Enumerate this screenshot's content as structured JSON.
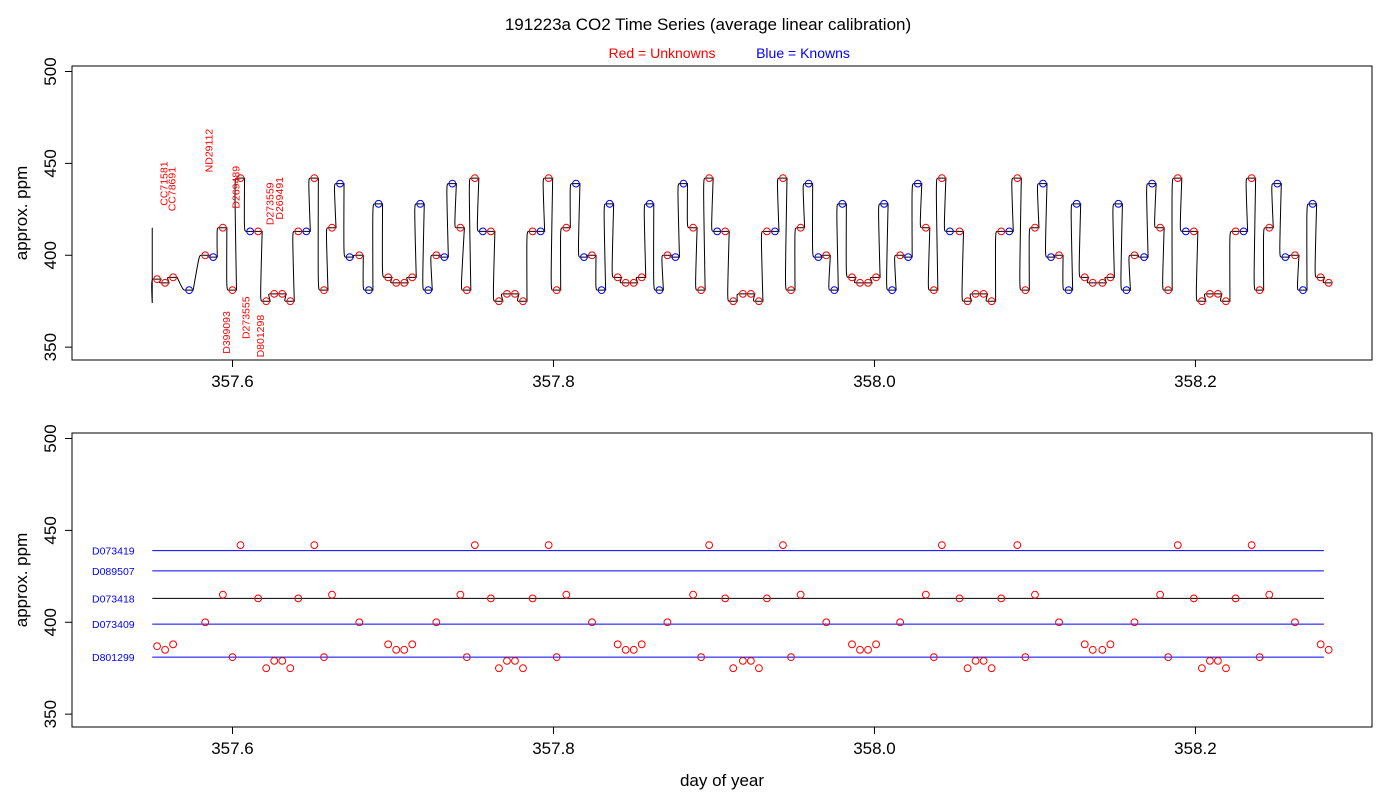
{
  "header": {
    "title": "191223a   CO2 Time Series (average linear calibration)",
    "legend_red": "Red = Unknowns",
    "legend_blue": "Blue = Knowns"
  },
  "colors": {
    "unknown": "#ff0000",
    "known": "#0000ff",
    "line": "#000000",
    "axis": "#000000"
  },
  "chart_data": [
    {
      "type": "line",
      "panel": "top",
      "title": "",
      "xlabel": "",
      "ylabel": "approx. ppm",
      "xlim": [
        357.5,
        358.31
      ],
      "ylim": [
        343,
        503
      ],
      "xticks": [
        357.6,
        357.8,
        358.0,
        358.2
      ],
      "xtick_labels": [
        "357.6",
        "357.8",
        "358.0",
        "358.2"
      ],
      "yticks": [
        350,
        400,
        450,
        500
      ],
      "ytick_labels": [
        "350",
        "400",
        "450",
        "500"
      ],
      "series_start_x": 357.55,
      "series_start_y": 415,
      "step_half_width": 0.0025,
      "levels": [
        {
          "x": 357.553,
          "y": 387,
          "k": 0
        },
        {
          "x": 357.558,
          "y": 385,
          "k": 0
        },
        {
          "x": 357.563,
          "y": 388,
          "k": 0
        },
        {
          "x": 357.573,
          "y": 381,
          "k": 1
        },
        {
          "x": 357.583,
          "y": 400,
          "k": 0
        },
        {
          "x": 357.588,
          "y": 399,
          "k": 1
        },
        {
          "x": 357.594,
          "y": 415,
          "k": 0
        },
        {
          "x": 357.6,
          "y": 381,
          "k": 0
        },
        {
          "x": 357.605,
          "y": 442,
          "k": 0
        },
        {
          "x": 357.611,
          "y": 413,
          "k": 1
        },
        {
          "x": 357.616,
          "y": 413,
          "k": 0
        },
        {
          "x": 357.621,
          "y": 375,
          "k": 0
        },
        {
          "x": 357.626,
          "y": 379,
          "k": 0
        },
        {
          "x": 357.631,
          "y": 379,
          "k": 0
        },
        {
          "x": 357.636,
          "y": 375,
          "k": 0
        },
        {
          "x": 357.641,
          "y": 413,
          "k": 0
        },
        {
          "x": 357.646,
          "y": 413,
          "k": 1
        },
        {
          "x": 357.651,
          "y": 442,
          "k": 0
        },
        {
          "x": 357.657,
          "y": 381,
          "k": 0
        },
        {
          "x": 357.662,
          "y": 415,
          "k": 0
        },
        {
          "x": 357.667,
          "y": 439,
          "k": 1
        },
        {
          "x": 357.673,
          "y": 399,
          "k": 1
        },
        {
          "x": 357.679,
          "y": 400,
          "k": 0
        },
        {
          "x": 357.685,
          "y": 381,
          "k": 1
        },
        {
          "x": 357.691,
          "y": 428,
          "k": 1
        },
        {
          "x": 357.697,
          "y": 388,
          "k": 0
        },
        {
          "x": 357.702,
          "y": 385,
          "k": 0
        },
        {
          "x": 357.707,
          "y": 385,
          "k": 0
        },
        {
          "x": 357.712,
          "y": 388,
          "k": 0
        },
        {
          "x": 357.717,
          "y": 428,
          "k": 1
        },
        {
          "x": 357.722,
          "y": 381,
          "k": 1
        },
        {
          "x": 357.727,
          "y": 400,
          "k": 0
        },
        {
          "x": 357.732,
          "y": 399,
          "k": 1
        },
        {
          "x": 357.737,
          "y": 439,
          "k": 1
        },
        {
          "x": 357.742,
          "y": 415,
          "k": 0
        },
        {
          "x": 357.746,
          "y": 381,
          "k": 0
        },
        {
          "x": 357.751,
          "y": 442,
          "k": 0
        },
        {
          "x": 357.756,
          "y": 413,
          "k": 1
        },
        {
          "x": 357.761,
          "y": 413,
          "k": 0
        },
        {
          "x": 357.766,
          "y": 375,
          "k": 0
        },
        {
          "x": 357.771,
          "y": 379,
          "k": 0
        },
        {
          "x": 357.776,
          "y": 379,
          "k": 0
        },
        {
          "x": 357.781,
          "y": 375,
          "k": 0
        },
        {
          "x": 357.787,
          "y": 413,
          "k": 0
        },
        {
          "x": 357.792,
          "y": 413,
          "k": 1
        },
        {
          "x": 357.797,
          "y": 442,
          "k": 0
        },
        {
          "x": 357.802,
          "y": 381,
          "k": 0
        },
        {
          "x": 357.808,
          "y": 415,
          "k": 0
        },
        {
          "x": 357.814,
          "y": 439,
          "k": 1
        },
        {
          "x": 357.819,
          "y": 399,
          "k": 1
        },
        {
          "x": 357.824,
          "y": 400,
          "k": 0
        },
        {
          "x": 357.83,
          "y": 381,
          "k": 1
        },
        {
          "x": 357.835,
          "y": 428,
          "k": 1
        },
        {
          "x": 357.84,
          "y": 388,
          "k": 0
        },
        {
          "x": 357.845,
          "y": 385,
          "k": 0
        },
        {
          "x": 357.85,
          "y": 385,
          "k": 0
        },
        {
          "x": 357.855,
          "y": 388,
          "k": 0
        },
        {
          "x": 357.86,
          "y": 428,
          "k": 1
        },
        {
          "x": 357.866,
          "y": 381,
          "k": 1
        },
        {
          "x": 357.871,
          "y": 400,
          "k": 0
        },
        {
          "x": 357.876,
          "y": 399,
          "k": 1
        },
        {
          "x": 357.881,
          "y": 439,
          "k": 1
        },
        {
          "x": 357.887,
          "y": 415,
          "k": 0
        },
        {
          "x": 357.892,
          "y": 381,
          "k": 0
        },
        {
          "x": 357.897,
          "y": 442,
          "k": 0
        },
        {
          "x": 357.902,
          "y": 413,
          "k": 1
        },
        {
          "x": 357.907,
          "y": 413,
          "k": 0
        },
        {
          "x": 357.912,
          "y": 375,
          "k": 0
        },
        {
          "x": 357.918,
          "y": 379,
          "k": 0
        },
        {
          "x": 357.923,
          "y": 379,
          "k": 0
        },
        {
          "x": 357.928,
          "y": 375,
          "k": 0
        },
        {
          "x": 357.933,
          "y": 413,
          "k": 0
        },
        {
          "x": 357.938,
          "y": 413,
          "k": 1
        },
        {
          "x": 357.943,
          "y": 442,
          "k": 0
        },
        {
          "x": 357.948,
          "y": 381,
          "k": 0
        },
        {
          "x": 357.954,
          "y": 415,
          "k": 0
        },
        {
          "x": 357.959,
          "y": 439,
          "k": 1
        },
        {
          "x": 357.965,
          "y": 399,
          "k": 1
        },
        {
          "x": 357.97,
          "y": 400,
          "k": 0
        },
        {
          "x": 357.975,
          "y": 381,
          "k": 1
        },
        {
          "x": 357.98,
          "y": 428,
          "k": 1
        },
        {
          "x": 357.986,
          "y": 388,
          "k": 0
        },
        {
          "x": 357.991,
          "y": 385,
          "k": 0
        },
        {
          "x": 357.996,
          "y": 385,
          "k": 0
        },
        {
          "x": 358.001,
          "y": 388,
          "k": 0
        },
        {
          "x": 358.006,
          "y": 428,
          "k": 1
        },
        {
          "x": 358.011,
          "y": 381,
          "k": 1
        },
        {
          "x": 358.016,
          "y": 400,
          "k": 0
        },
        {
          "x": 358.021,
          "y": 399,
          "k": 1
        },
        {
          "x": 358.027,
          "y": 439,
          "k": 1
        },
        {
          "x": 358.032,
          "y": 415,
          "k": 0
        },
        {
          "x": 358.037,
          "y": 381,
          "k": 0
        },
        {
          "x": 358.042,
          "y": 442,
          "k": 0
        },
        {
          "x": 358.047,
          "y": 413,
          "k": 1
        },
        {
          "x": 358.053,
          "y": 413,
          "k": 0
        },
        {
          "x": 358.058,
          "y": 375,
          "k": 0
        },
        {
          "x": 358.063,
          "y": 379,
          "k": 0
        },
        {
          "x": 358.068,
          "y": 379,
          "k": 0
        },
        {
          "x": 358.073,
          "y": 375,
          "k": 0
        },
        {
          "x": 358.079,
          "y": 413,
          "k": 0
        },
        {
          "x": 358.084,
          "y": 413,
          "k": 1
        },
        {
          "x": 358.089,
          "y": 442,
          "k": 0
        },
        {
          "x": 358.094,
          "y": 381,
          "k": 0
        },
        {
          "x": 358.1,
          "y": 415,
          "k": 0
        },
        {
          "x": 358.105,
          "y": 439,
          "k": 1
        },
        {
          "x": 358.11,
          "y": 399,
          "k": 1
        },
        {
          "x": 358.115,
          "y": 400,
          "k": 0
        },
        {
          "x": 358.121,
          "y": 381,
          "k": 1
        },
        {
          "x": 358.126,
          "y": 428,
          "k": 1
        },
        {
          "x": 358.131,
          "y": 388,
          "k": 0
        },
        {
          "x": 358.136,
          "y": 385,
          "k": 0
        },
        {
          "x": 358.142,
          "y": 385,
          "k": 0
        },
        {
          "x": 358.147,
          "y": 388,
          "k": 0
        },
        {
          "x": 358.152,
          "y": 428,
          "k": 1
        },
        {
          "x": 358.157,
          "y": 381,
          "k": 1
        },
        {
          "x": 358.162,
          "y": 400,
          "k": 0
        },
        {
          "x": 358.168,
          "y": 399,
          "k": 1
        },
        {
          "x": 358.173,
          "y": 439,
          "k": 1
        },
        {
          "x": 358.178,
          "y": 415,
          "k": 0
        },
        {
          "x": 358.183,
          "y": 381,
          "k": 0
        },
        {
          "x": 358.189,
          "y": 442,
          "k": 0
        },
        {
          "x": 358.194,
          "y": 413,
          "k": 1
        },
        {
          "x": 358.199,
          "y": 413,
          "k": 0
        },
        {
          "x": 358.204,
          "y": 375,
          "k": 0
        },
        {
          "x": 358.209,
          "y": 379,
          "k": 0
        },
        {
          "x": 358.214,
          "y": 379,
          "k": 0
        },
        {
          "x": 358.219,
          "y": 375,
          "k": 0
        },
        {
          "x": 358.225,
          "y": 413,
          "k": 0
        },
        {
          "x": 358.23,
          "y": 413,
          "k": 1
        },
        {
          "x": 358.235,
          "y": 442,
          "k": 0
        },
        {
          "x": 358.24,
          "y": 381,
          "k": 0
        },
        {
          "x": 358.246,
          "y": 415,
          "k": 0
        },
        {
          "x": 358.251,
          "y": 439,
          "k": 1
        },
        {
          "x": 358.256,
          "y": 399,
          "k": 1
        },
        {
          "x": 358.262,
          "y": 400,
          "k": 0
        },
        {
          "x": 358.267,
          "y": 381,
          "k": 1
        },
        {
          "x": 358.273,
          "y": 428,
          "k": 1
        },
        {
          "x": 358.278,
          "y": 388,
          "k": 0
        },
        {
          "x": 358.283,
          "y": 385,
          "k": 0
        }
      ],
      "annotations": [
        {
          "text": "CC71581",
          "x": 357.557,
          "y": 439,
          "rot": -90,
          "anchor": "middle"
        },
        {
          "text": "CC78691",
          "x": 357.562,
          "y": 436,
          "rot": -90,
          "anchor": "middle"
        },
        {
          "text": "ND29112",
          "x": 357.585,
          "y": 457,
          "rot": -90,
          "anchor": "middle"
        },
        {
          "text": "D269489",
          "x": 357.602,
          "y": 437,
          "rot": -90,
          "anchor": "middle"
        },
        {
          "text": "D273555",
          "x": 357.608,
          "y": 366,
          "rot": -90,
          "anchor": "middle"
        },
        {
          "text": "D273559",
          "x": 357.623,
          "y": 428,
          "rot": -90,
          "anchor": "middle"
        },
        {
          "text": "D269491",
          "x": 357.629,
          "y": 431,
          "rot": -90,
          "anchor": "middle"
        },
        {
          "text": "D399093",
          "x": 357.596,
          "y": 358,
          "rot": -90,
          "anchor": "middle"
        },
        {
          "text": "D801298",
          "x": 357.617,
          "y": 356,
          "rot": -90,
          "anchor": "middle"
        }
      ]
    },
    {
      "type": "scatter",
      "panel": "bottom",
      "title": "",
      "xlabel": "day of year",
      "ylabel": "approx. ppm",
      "xlim": [
        357.5,
        358.31
      ],
      "ylim": [
        343,
        503
      ],
      "xticks": [
        357.6,
        357.8,
        358.0,
        358.2
      ],
      "xtick_labels": [
        "357.6",
        "357.8",
        "358.0",
        "358.2"
      ],
      "yticks": [
        350,
        400,
        450,
        500
      ],
      "ytick_labels": [
        "350",
        "400",
        "450",
        "500"
      ],
      "reference_lines": [
        {
          "name": "D073419",
          "y": 439,
          "color": "#0000ff"
        },
        {
          "name": "D089507",
          "y": 428,
          "color": "#0000ff"
        },
        {
          "name": "D073418",
          "y": 413,
          "color": "#000000"
        },
        {
          "name": "D073409",
          "y": 399,
          "color": "#0000ff"
        },
        {
          "name": "D801299",
          "y": 381,
          "color": "#0000ff"
        }
      ],
      "line_x_range": [
        357.55,
        358.28
      ]
    }
  ]
}
